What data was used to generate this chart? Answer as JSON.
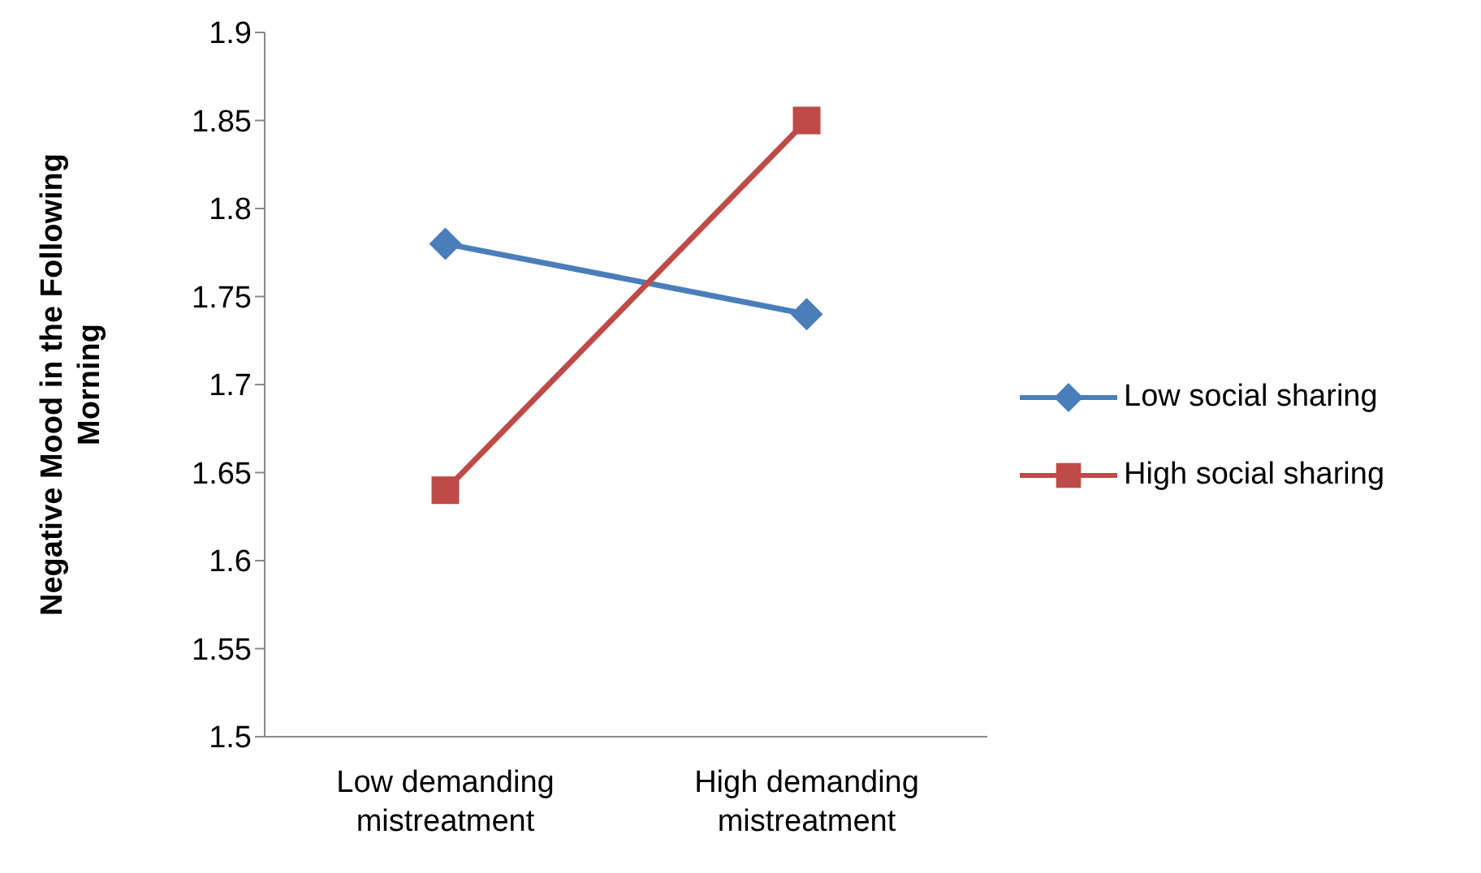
{
  "chart_data": {
    "type": "line",
    "ylabel": "Negative Mood in the Following Morning",
    "categories": [
      "Low demanding mistreatment",
      "High demanding mistreatment"
    ],
    "series": [
      {
        "name": "Low social sharing",
        "color": "#4a7ebb",
        "values": [
          1.78,
          1.74
        ],
        "marker": "diamond"
      },
      {
        "name": "High social sharing",
        "color": "#be4b48",
        "values": [
          1.64,
          1.85
        ],
        "marker": "square"
      }
    ],
    "ylim": [
      1.5,
      1.9
    ],
    "yticks": [
      1.5,
      1.55,
      1.6,
      1.65,
      1.7,
      1.75,
      1.8,
      1.85,
      1.9
    ],
    "grid": false,
    "legend": "right"
  }
}
